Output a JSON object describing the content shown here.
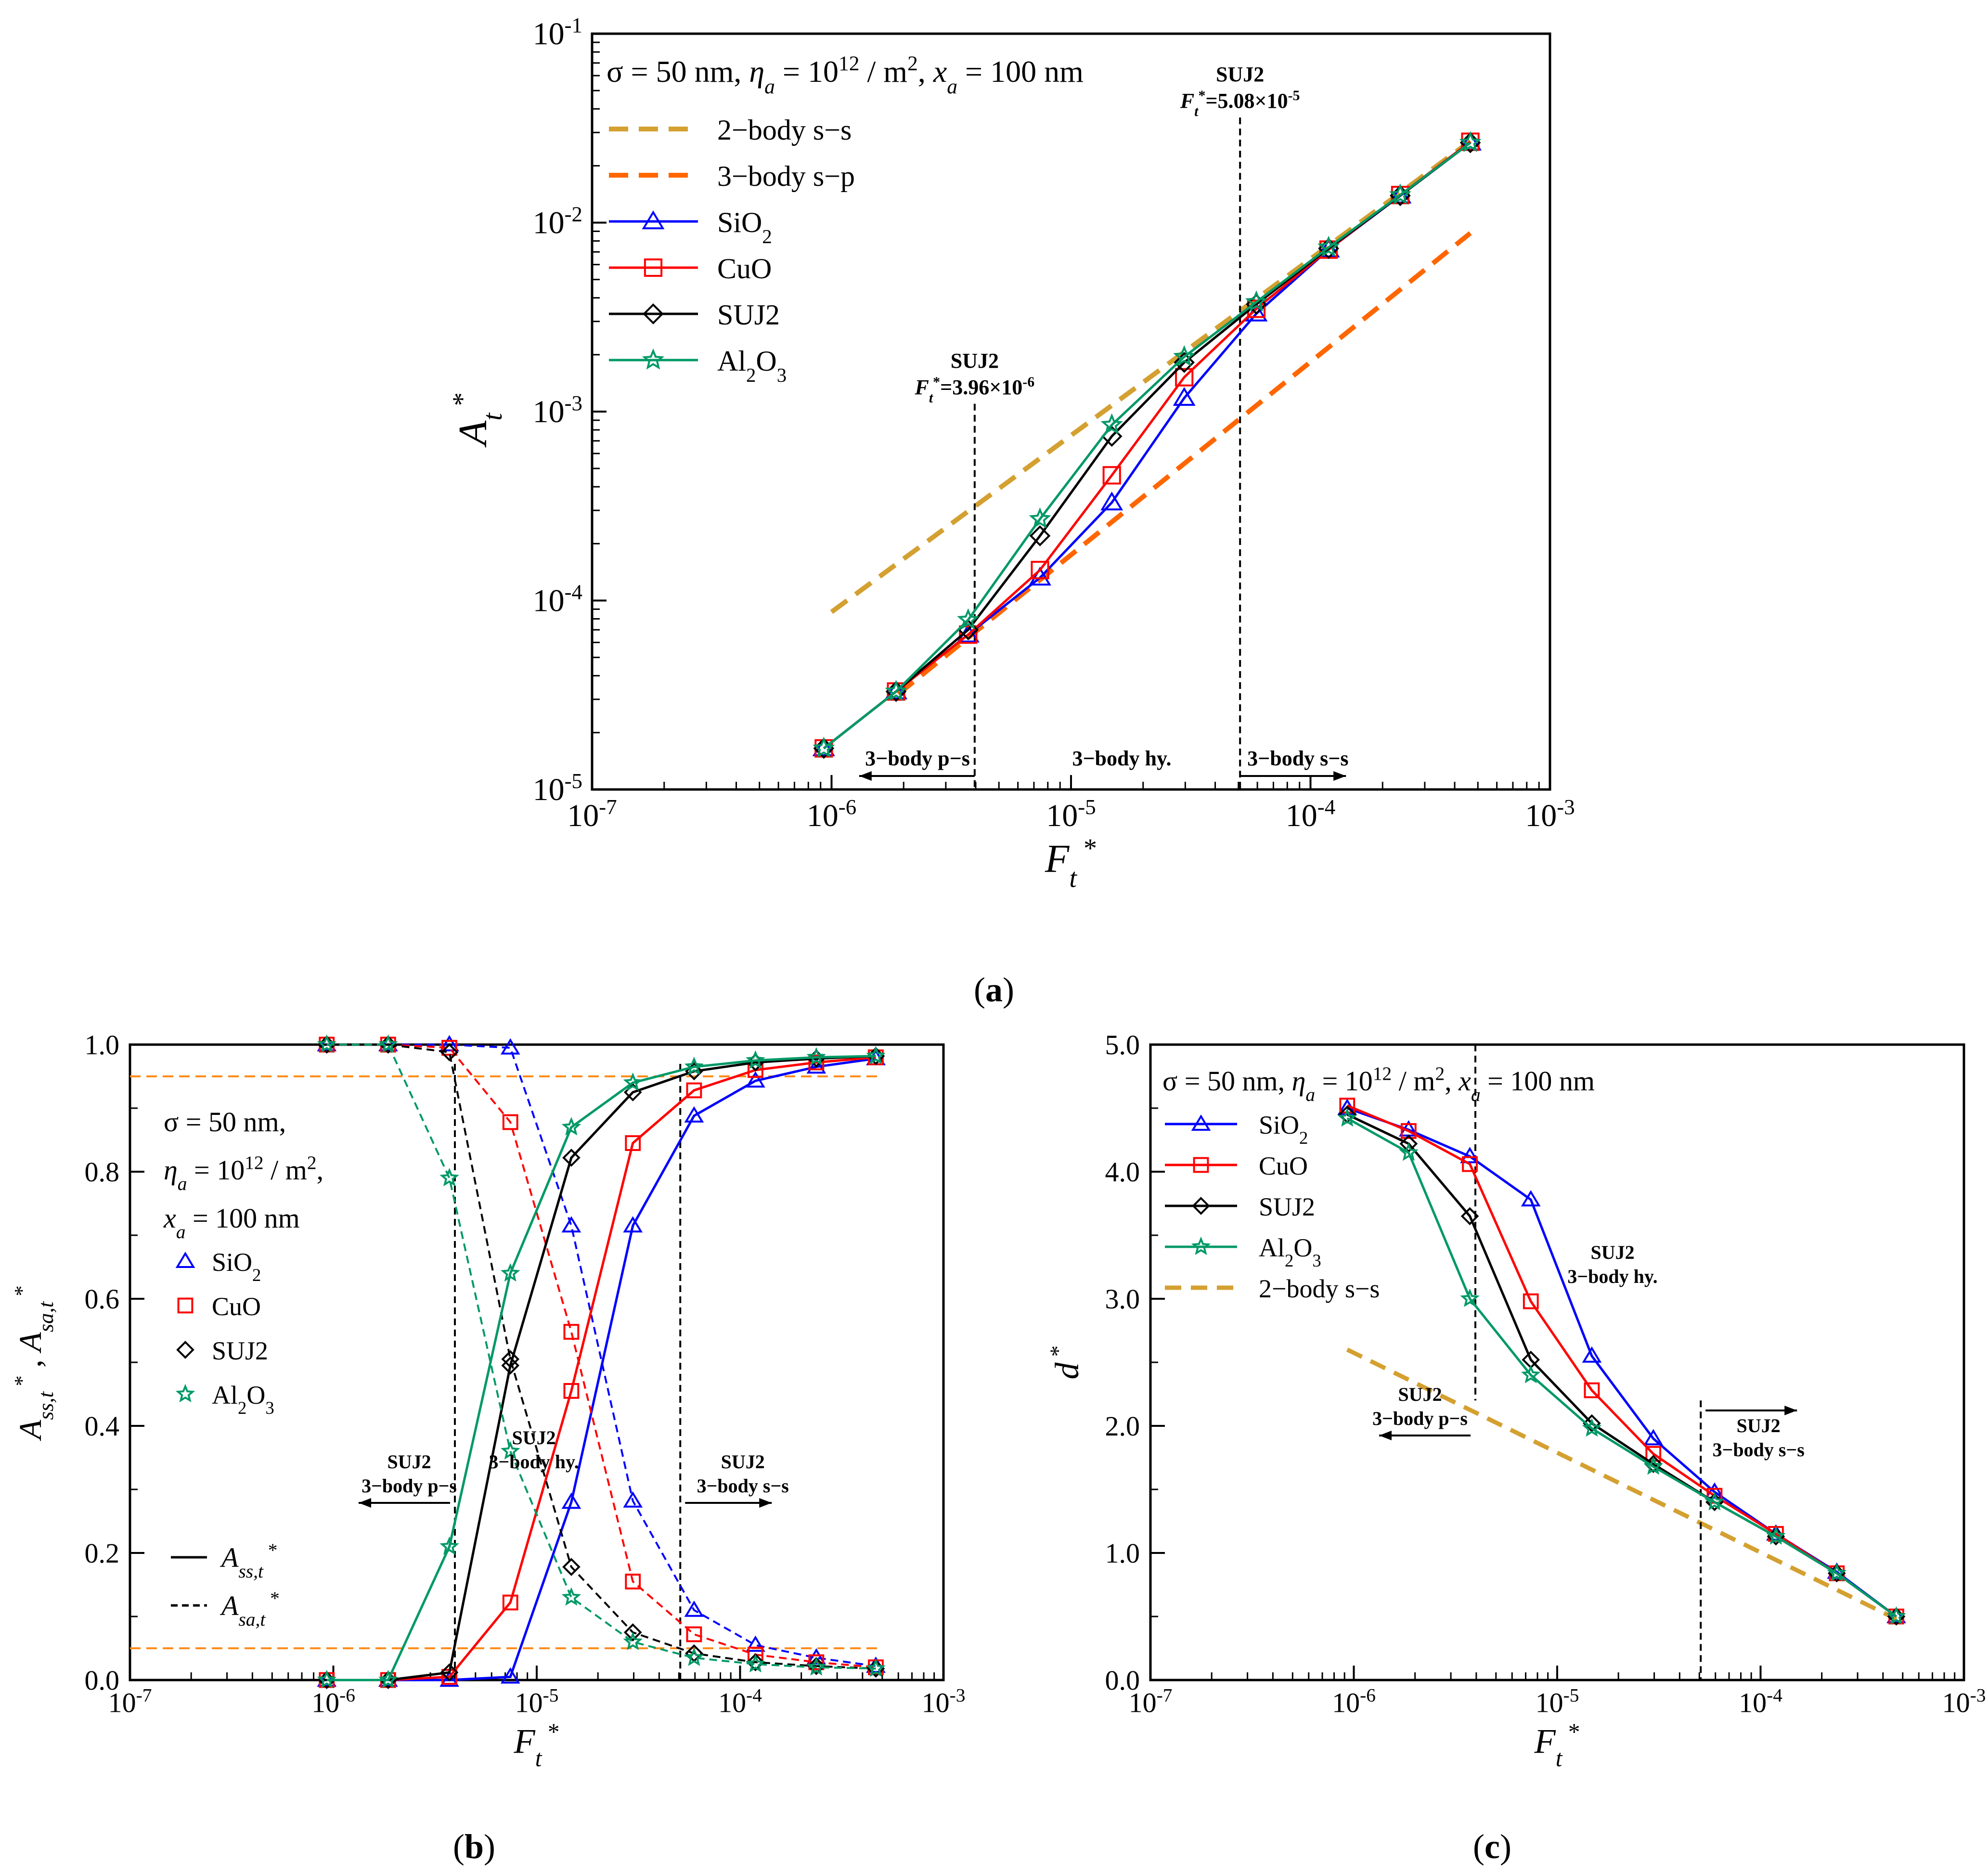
{
  "colors": {
    "SiO2": "#0000ff",
    "CuO": "#ff0000",
    "SUJ2": "#000000",
    "Al2O3": "#009966",
    "two_body": "#d4a030",
    "three_body": "#ff6600",
    "ref_orange": "#ff8c1a"
  },
  "chart_data": [
    {
      "id": "a",
      "type": "line",
      "panel_label": [
        "(",
        "a",
        ")"
      ],
      "xscale": "log",
      "yscale": "log",
      "xlim": [
        1e-07,
        0.001
      ],
      "ylim": [
        1e-05,
        0.1
      ],
      "xticks": [
        -7,
        -6,
        -5,
        -4,
        -3
      ],
      "yticks": [
        -5,
        -4,
        -3,
        -2,
        -1
      ],
      "xlabel": {
        "main": "F",
        "sub": "t",
        "sup": "*"
      },
      "ylabel": {
        "main": "A",
        "sub": "t",
        "sup": "*"
      },
      "params": {
        "sigma": "σ = 50 nm, ",
        "eta": "η",
        "eta_sub": "a",
        "eta_val": " = 10",
        "eta_exp": "12",
        "eta_unit": " / m",
        "eta_unit_exp": "2",
        "comma": ", ",
        "x": "x",
        "x_sub": "a",
        "x_val": " = 100 nm"
      },
      "reference_lines": [
        {
          "name": "2−body s−s",
          "style": "dashed",
          "color_key": "two_body",
          "x": [
            1e-06,
            0.000465
          ],
          "y": [
            8.7e-05,
            0.027
          ]
        },
        {
          "name": "3−body s−p",
          "style": "dashed",
          "color_key": "three_body",
          "x": [
            1.9e-06,
            0.000465
          ],
          "y": [
            3.2e-05,
            0.0088
          ]
        }
      ],
      "series": [
        {
          "name": "SiO2",
          "label": "SiO",
          "label_sub": "2",
          "marker": "triangle",
          "x": [
            9.28e-07,
            1.86e-06,
            3.72e-06,
            7.42e-06,
            1.48e-05,
            2.97e-05,
            5.94e-05,
            0.000119,
            0.000237,
            0.000465
          ],
          "y": [
            1.65e-05,
            3.3e-05,
            6.6e-05,
            0.000132,
            0.00033,
            0.00118,
            0.0033,
            0.0072,
            0.0139,
            0.0265
          ]
        },
        {
          "name": "CuO",
          "label": "CuO",
          "label_sub": "",
          "marker": "square",
          "x": [
            9.28e-07,
            1.86e-06,
            3.72e-06,
            7.42e-06,
            1.48e-05,
            2.97e-05,
            5.94e-05,
            0.000119,
            0.000237,
            0.000465
          ],
          "y": [
            1.65e-05,
            3.3e-05,
            6.6e-05,
            0.000145,
            0.00046,
            0.00152,
            0.0035,
            0.0072,
            0.014,
            0.0268
          ]
        },
        {
          "name": "SUJ2",
          "label": "SUJ2",
          "label_sub": "",
          "marker": "diamond",
          "x": [
            9.28e-07,
            1.86e-06,
            3.72e-06,
            7.42e-06,
            1.48e-05,
            2.97e-05,
            5.94e-05,
            0.000119,
            0.000237,
            0.000465
          ],
          "y": [
            1.65e-05,
            3.3e-05,
            7e-05,
            0.00022,
            0.00074,
            0.00182,
            0.0037,
            0.0073,
            0.0139,
            0.0265
          ]
        },
        {
          "name": "Al2O3",
          "label": "Al",
          "label_sub": "2",
          "label_tail": "O",
          "label_sub2": "3",
          "marker": "star",
          "x": [
            9.28e-07,
            1.86e-06,
            3.72e-06,
            7.42e-06,
            1.48e-05,
            2.97e-05,
            5.94e-05,
            0.000119,
            0.000237,
            0.000465
          ],
          "y": [
            1.65e-05,
            3.3e-05,
            7.9e-05,
            0.00027,
            0.00085,
            0.00195,
            0.0038,
            0.0074,
            0.014,
            0.0265
          ]
        }
      ],
      "vlines": [
        {
          "x": 3.96e-06,
          "y_top": 0.0011,
          "label1": "SUJ2",
          "label2_main": "F",
          "label2_sub": "t",
          "label2_sup": "*",
          "label2_rest": "=3.96×10",
          "label2_exp": "-6"
        },
        {
          "x": 5.08e-05,
          "y_top": 0.036,
          "label1": "SUJ2",
          "label2_main": "F",
          "label2_sub": "t",
          "label2_sup": "*",
          "label2_rest": "=5.08×10",
          "label2_exp": "-5"
        }
      ],
      "regions": [
        {
          "label": "3−body p−s",
          "arrow": "left"
        },
        {
          "label": "3−body hy.",
          "arrow": "none"
        },
        {
          "label": "3−body s−s",
          "arrow": "right"
        }
      ]
    },
    {
      "id": "b",
      "type": "line",
      "panel_label": [
        "(",
        "b",
        ")"
      ],
      "xscale": "log",
      "yscale": "linear",
      "xlim": [
        1e-07,
        0.001
      ],
      "ylim": [
        0,
        1
      ],
      "xticks": [
        -7,
        -6,
        -5,
        -4,
        -3
      ],
      "yticks": [
        "0.0",
        "0.2",
        "0.4",
        "0.6",
        "0.8",
        "1.0"
      ],
      "xlabel": {
        "main": "F",
        "sub": "t",
        "sup": "*"
      },
      "ylabel": {
        "a": "A",
        "a_sub": "ss,t",
        "a_sup": "*",
        "sep": " , ",
        "b": "A",
        "b_sub": "sa,t",
        "b_sup": "*"
      },
      "params": [
        "σ = 50 nm,",
        "η",
        "a",
        " = 10",
        "12",
        " / m",
        "2",
        ",",
        "x",
        "a",
        " = 100 nm"
      ],
      "hlines": [
        0.95,
        0.05
      ],
      "x": [
        9.28e-07,
        1.86e-06,
        3.72e-06,
        7.42e-06,
        1.48e-05,
        2.97e-05,
        5.94e-05,
        0.000119,
        0.000237,
        0.000465
      ],
      "series": [
        {
          "name": "SiO2",
          "marker": "triangle",
          "ss": [
            0,
            0,
            0,
            0.005,
            0.28,
            0.715,
            0.888,
            0.943,
            0.965,
            0.978
          ],
          "sa": [
            1,
            1,
            1,
            0.995,
            0.715,
            0.282,
            0.11,
            0.055,
            0.035,
            0.022
          ]
        },
        {
          "name": "CuO",
          "marker": "square",
          "ss": [
            0,
            0,
            0.005,
            0.122,
            0.455,
            0.845,
            0.928,
            0.96,
            0.972,
            0.98
          ],
          "sa": [
            1,
            1,
            0.995,
            0.878,
            0.548,
            0.155,
            0.072,
            0.04,
            0.028,
            0.02
          ]
        },
        {
          "name": "SUJ2",
          "marker": "diamond",
          "ss": [
            0,
            0,
            0.012,
            0.495,
            0.822,
            0.925,
            0.958,
            0.972,
            0.978,
            0.982
          ],
          "sa": [
            1,
            1,
            0.988,
            0.505,
            0.178,
            0.075,
            0.042,
            0.028,
            0.022,
            0.018
          ]
        },
        {
          "name": "Al2O3",
          "marker": "star",
          "ss": [
            0,
            0,
            0.21,
            0.64,
            0.87,
            0.94,
            0.965,
            0.975,
            0.98,
            0.982
          ],
          "sa": [
            1,
            1,
            0.79,
            0.36,
            0.13,
            0.06,
            0.035,
            0.025,
            0.02,
            0.018
          ]
        }
      ],
      "vlines": [
        3.96e-06,
        5.08e-05
      ],
      "regions": [
        {
          "title": "SUJ2",
          "label": "3−body p−s",
          "arrow": "left"
        },
        {
          "title": "SUJ2",
          "label": "3−body hy.",
          "arrow": "none"
        },
        {
          "title": "SUJ2",
          "label": "3−body s−s",
          "arrow": "right"
        }
      ],
      "style_legend": [
        {
          "style": "solid",
          "main": "A",
          "sub": "ss,t",
          "sup": "*"
        },
        {
          "style": "dashed",
          "main": "A",
          "sub": "sa,t",
          "sup": "*"
        }
      ]
    },
    {
      "id": "c",
      "type": "line",
      "panel_label": [
        "(",
        "c",
        ")"
      ],
      "xscale": "log",
      "yscale": "linear",
      "xlim": [
        1e-07,
        0.001
      ],
      "ylim": [
        0,
        5
      ],
      "xticks": [
        -7,
        -6,
        -5,
        -4,
        -3
      ],
      "yticks": [
        "0.0",
        "1.0",
        "2.0",
        "3.0",
        "4.0",
        "5.0"
      ],
      "xlabel": {
        "main": "F",
        "sub": "t",
        "sup": "*"
      },
      "ylabel": {
        "main": "d",
        "sup": "*"
      },
      "params": {
        "sigma": "σ = 50 nm, ",
        "eta": "η",
        "eta_sub": "a",
        "eta_val": " = 10",
        "eta_exp": "12",
        "eta_unit": " / m",
        "eta_unit_exp": "2",
        "comma": ", ",
        "x": "x",
        "x_sub": "a",
        "x_val": " = 100 nm"
      },
      "reference_lines": [
        {
          "name": "2−body s−s",
          "style": "dashed",
          "color_key": "two_body",
          "x": [
            9.28e-07,
            0.000465
          ],
          "y": [
            2.6,
            0.48
          ]
        }
      ],
      "x": [
        9.28e-07,
        1.86e-06,
        3.72e-06,
        7.42e-06,
        1.48e-05,
        2.97e-05,
        5.94e-05,
        0.000119,
        0.000237,
        0.000465
      ],
      "series": [
        {
          "name": "SiO2",
          "marker": "triangle",
          "y": [
            4.5,
            4.33,
            4.12,
            3.78,
            2.55,
            1.9,
            1.48,
            1.15,
            0.85,
            0.5
          ]
        },
        {
          "name": "CuO",
          "marker": "square",
          "y": [
            4.52,
            4.32,
            4.06,
            2.98,
            2.28,
            1.78,
            1.45,
            1.15,
            0.84,
            0.5
          ]
        },
        {
          "name": "SUJ2",
          "marker": "diamond",
          "y": [
            4.45,
            4.22,
            3.65,
            2.52,
            2.02,
            1.7,
            1.4,
            1.13,
            0.84,
            0.5
          ]
        },
        {
          "name": "Al2O3",
          "marker": "star",
          "y": [
            4.42,
            4.15,
            3.0,
            2.4,
            1.98,
            1.68,
            1.4,
            1.13,
            0.84,
            0.5
          ]
        }
      ],
      "vlines": [
        {
          "x": 3.96e-06,
          "y_bottom": 2.2,
          "y_top": 5.0
        },
        {
          "x": 5.08e-05,
          "y_bottom": 0.0,
          "y_top": 2.2
        }
      ],
      "regions": [
        {
          "title": "SUJ2",
          "label": "3−body hy.",
          "arrow": "none"
        },
        {
          "title": "SUJ2",
          "label": "3−body p−s",
          "arrow": "left"
        },
        {
          "title": "SUJ2",
          "label": "3−body s−s",
          "arrow": "right"
        }
      ]
    }
  ]
}
